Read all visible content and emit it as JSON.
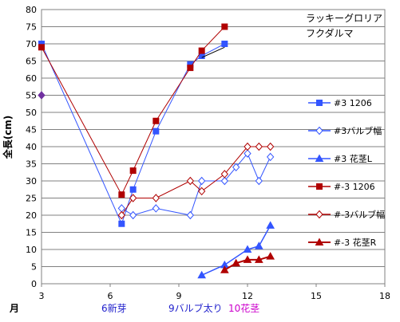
{
  "chart_data": {
    "type": "line",
    "title": "",
    "annotation": [
      "ラッキーグロリア",
      "フクダルマ"
    ],
    "ylabel": "全長(cm)",
    "xunit_label": "月",
    "xlim": [
      3,
      18
    ],
    "ylim": [
      0,
      80
    ],
    "xticks": [
      3,
      6,
      9,
      12,
      15,
      18
    ],
    "yticks": [
      0,
      5,
      10,
      15,
      20,
      25,
      30,
      35,
      40,
      45,
      50,
      55,
      60,
      65,
      70,
      75,
      80
    ],
    "grid_y": true,
    "grid_x": false,
    "legend_position": "right",
    "stage_labels": [
      {
        "text": "6新芽",
        "color": "#1f1fcc"
      },
      {
        "text": "9バルブ太り",
        "color": "#1f1fcc"
      },
      {
        "text": "10花茎",
        "color": "#cc00cc"
      }
    ],
    "series": [
      {
        "name": "#3 1206",
        "color": "#3355ff",
        "marker": "square",
        "filled": true,
        "width": 1,
        "points": [
          [
            3,
            70
          ],
          [
            6.5,
            17.5
          ],
          [
            7,
            27.5
          ],
          [
            8,
            44.5
          ],
          [
            9.5,
            64
          ],
          [
            10,
            66.5
          ],
          [
            11,
            70
          ]
        ]
      },
      {
        "name": "#3バルブ幅",
        "color": "#3355ff",
        "marker": "diamond",
        "filled": false,
        "width": 1,
        "points": [
          [
            6.5,
            22
          ],
          [
            7,
            20
          ],
          [
            8,
            22
          ],
          [
            9.5,
            20
          ],
          [
            10,
            30
          ],
          [
            11,
            30
          ],
          [
            11.5,
            34
          ],
          [
            12,
            38
          ],
          [
            12.5,
            30
          ],
          [
            13,
            37
          ]
        ]
      },
      {
        "name": "#3 花茎L",
        "color": "#3355ff",
        "marker": "triangle",
        "filled": true,
        "width": 1.5,
        "points": [
          [
            10,
            2.5
          ],
          [
            11,
            5.5
          ],
          [
            12,
            10
          ],
          [
            12.5,
            11
          ],
          [
            13,
            17
          ]
        ]
      },
      {
        "name": "#-3 1206",
        "color": "#b00000",
        "marker": "square",
        "filled": true,
        "width": 1,
        "points": [
          [
            3,
            69
          ],
          [
            6.5,
            26
          ],
          [
            7,
            33
          ],
          [
            8,
            47.5
          ],
          [
            9.5,
            63
          ],
          [
            10,
            68
          ],
          [
            11,
            75
          ]
        ]
      },
      {
        "name": "#-3バルブ幅",
        "color": "#b00000",
        "marker": "diamond",
        "filled": false,
        "width": 1,
        "points": [
          [
            6.5,
            20
          ],
          [
            7,
            25
          ],
          [
            8,
            25
          ],
          [
            9.5,
            30
          ],
          [
            10,
            27
          ],
          [
            11,
            32
          ],
          [
            12,
            40
          ],
          [
            12.5,
            40
          ],
          [
            13,
            40
          ]
        ]
      },
      {
        "name": "#-3 花茎R",
        "color": "#b00000",
        "marker": "triangle",
        "filled": true,
        "width": 2,
        "points": [
          [
            11,
            4
          ],
          [
            11.5,
            6
          ],
          [
            12,
            7
          ],
          [
            12.5,
            7
          ],
          [
            13,
            8
          ]
        ]
      }
    ],
    "extra_points": [
      {
        "color": "#7030a0",
        "marker": "diamond",
        "filled": true,
        "point": [
          3,
          55
        ]
      }
    ],
    "trendline": {
      "color": "#000000",
      "points": [
        [
          10,
          66
        ],
        [
          11,
          69
        ]
      ]
    }
  }
}
